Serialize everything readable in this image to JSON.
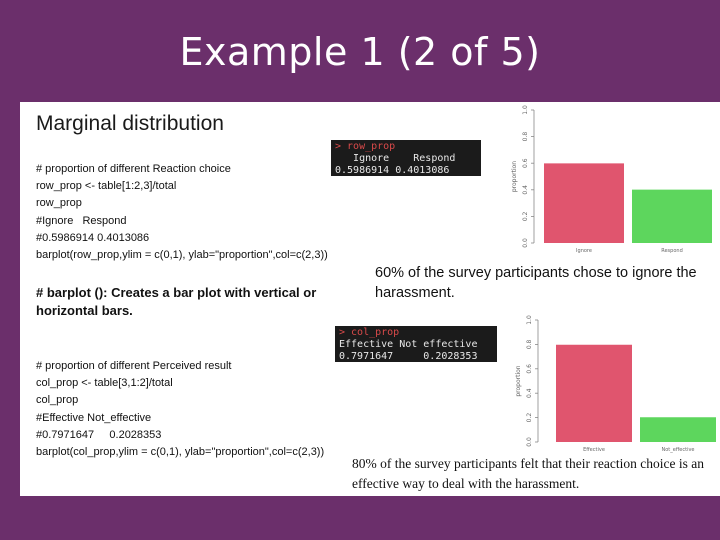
{
  "slide": {
    "title": "Example 1 (2 of 5)"
  },
  "content": {
    "heading": "Marginal distribution",
    "code_block_1": [
      "# proportion of different Reaction choice",
      "row_prop <- table[1:2,3]/total",
      "row_prop",
      "#Ignore   Respond",
      "#0.5986914 0.4013086",
      "barplot(row_prop,ylim = c(0,1), ylab=\"proportion\",col=c(2,3))"
    ],
    "note": "# barplot (): Creates a bar plot with vertical or horizontal bars.",
    "code_block_2": [
      "# proportion of different Perceived result",
      "col_prop <- table[3,1:2]/total",
      "col_prop",
      "#Effective Not_effective",
      "#0.7971647     0.2028353",
      "barplot(col_prop,ylim = c(0,1), ylab=\"proportion\",col=c(2,3))"
    ],
    "console_1": {
      "prompt": "> row_prop",
      "header": "   Ignore    Respond",
      "values": "0.5986914 0.4013086"
    },
    "console_2": {
      "prompt": "> col_prop",
      "header": "Effective Not effective",
      "values": "0.7971647     0.2028353"
    },
    "caption_1": "60% of the survey participants chose to ignore the harassment.",
    "caption_2": "80% of the survey participants felt that their reaction choice is an effective way to deal with the harassment."
  },
  "colors": {
    "purple": "#6b2f6b",
    "bar_red": "#e0556e",
    "bar_green": "#5dd65d"
  },
  "chart_data": [
    {
      "type": "bar",
      "categories": [
        "Ignore",
        "Respond"
      ],
      "values": [
        0.5986914,
        0.4013086
      ],
      "ylabel": "proportion",
      "ylim": [
        0,
        1
      ],
      "yticks": [
        "0.0",
        "0.2",
        "0.4",
        "0.6",
        "0.8",
        "1.0"
      ],
      "colors": [
        "#e0556e",
        "#5dd65d"
      ]
    },
    {
      "type": "bar",
      "categories": [
        "Effective",
        "Not_effective"
      ],
      "values": [
        0.7971647,
        0.2028353
      ],
      "ylabel": "proportion",
      "ylim": [
        0,
        1
      ],
      "yticks": [
        "0.0",
        "0.2",
        "0.4",
        "0.6",
        "0.8",
        "1.0"
      ],
      "colors": [
        "#e0556e",
        "#5dd65d"
      ]
    }
  ]
}
